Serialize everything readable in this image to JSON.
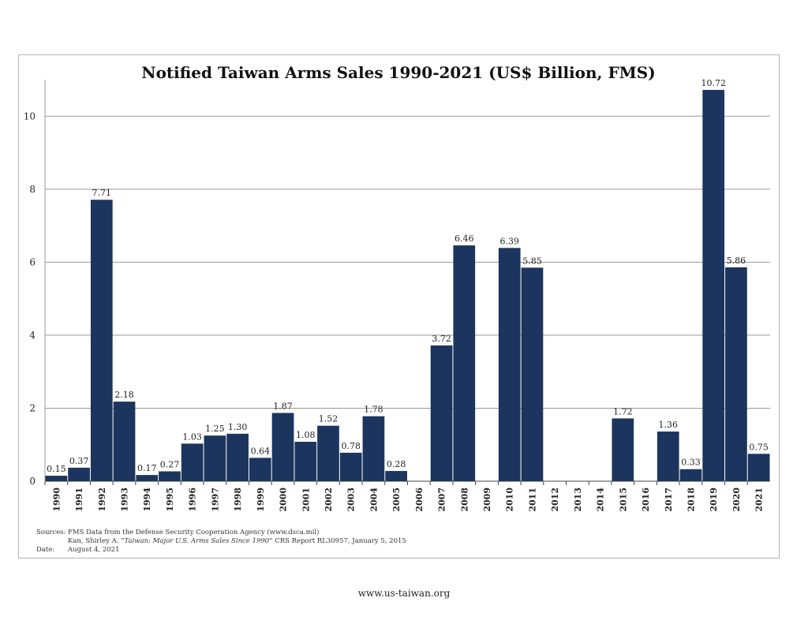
{
  "chart_data": {
    "type": "bar",
    "title": "Notified Taiwan Arms Sales 1990-2021 (US$ Billion, FMS)",
    "xlabel": "",
    "ylabel": "",
    "ylim": [
      0,
      11
    ],
    "yticks": [
      0,
      2,
      4,
      6,
      8,
      10
    ],
    "grid": true,
    "bar_color": "#1c355e",
    "categories": [
      "1990",
      "1991",
      "1992",
      "1993",
      "1994",
      "1995",
      "1996",
      "1997",
      "1998",
      "1999",
      "2000",
      "2001",
      "2002",
      "2003",
      "2004",
      "2005",
      "2006",
      "2007",
      "2008",
      "2009",
      "2010",
      "2011",
      "2012",
      "2013",
      "2014",
      "2015",
      "2016",
      "2017",
      "2018",
      "2019",
      "2020",
      "2021"
    ],
    "values": [
      0.15,
      0.37,
      7.71,
      2.18,
      0.17,
      0.27,
      1.03,
      1.25,
      1.3,
      0.64,
      1.87,
      1.08,
      1.52,
      0.78,
      1.78,
      0.28,
      0,
      3.72,
      6.46,
      0,
      6.39,
      5.85,
      0,
      0,
      0,
      1.72,
      0,
      1.36,
      0.33,
      10.72,
      5.86,
      0.75
    ],
    "data_labels": [
      "0.15",
      "0.37",
      "7.71",
      "2.18",
      "0.17",
      "0.27",
      "1.03",
      "1.25",
      "1.30",
      "0.64",
      "1.87",
      "1.08",
      "1.52",
      "0.78",
      "1.78",
      "0.28",
      "",
      "3.72",
      "6.46",
      "",
      "6.39",
      "5.85",
      "",
      "",
      "",
      "1.72",
      "",
      "1.36",
      "0.33",
      "10.72",
      "5.86",
      "0.75"
    ]
  },
  "sources": {
    "sources_label": "Sources:",
    "line1": "FMS Data from the Defense Security Cooperation Agency (www.dsca.mil)",
    "line2_prefix": "Kan, Shirley A. “",
    "line2_italic": "Taiwan: Major U.S. Arms Sales Since 1990",
    "line2_suffix": "” CRS Report RL30957, January 5, 2015",
    "date_label": "Date:",
    "date": "August 4, 2021"
  },
  "footer": {
    "website": "www.us-taiwan.org"
  }
}
